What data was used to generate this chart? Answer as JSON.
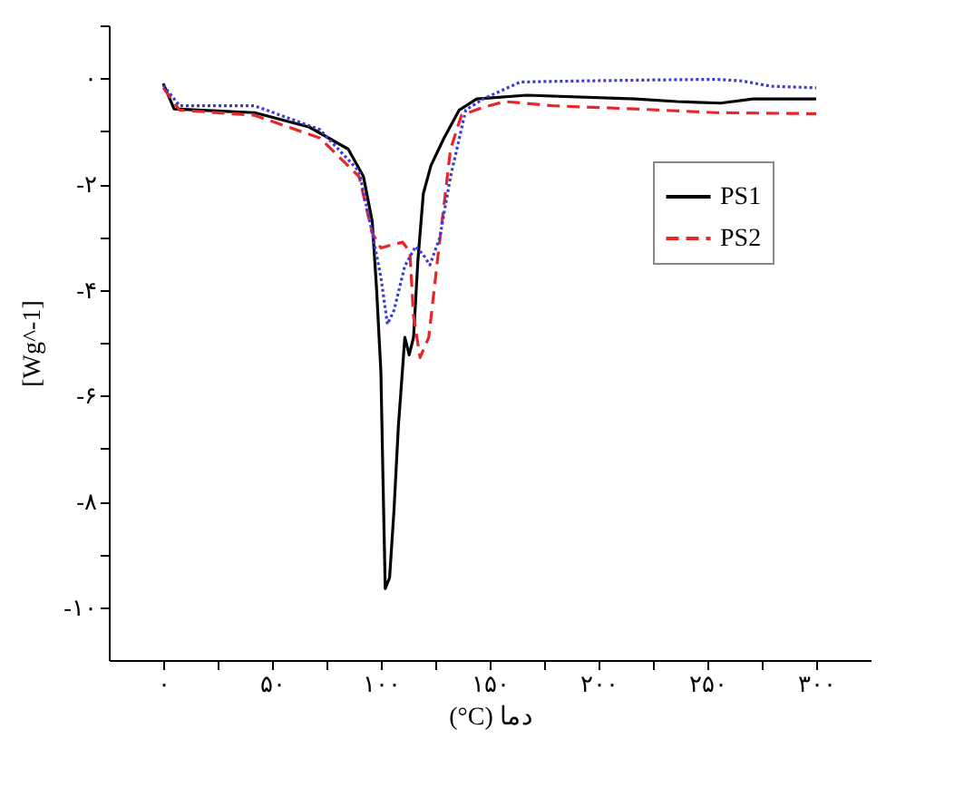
{
  "chart_data": {
    "type": "line",
    "xlabel": "(°C) دما",
    "ylabel": "[Wg^-1]",
    "xlim": [
      -25,
      325
    ],
    "ylim": [
      -11,
      1
    ],
    "xticks": [
      {
        "value": 0,
        "label": "۰"
      },
      {
        "value": 25,
        "label": null
      },
      {
        "value": 50,
        "label": "۵۰"
      },
      {
        "value": 75,
        "label": null
      },
      {
        "value": 100,
        "label": "۱۰۰"
      },
      {
        "value": 125,
        "label": null
      },
      {
        "value": 150,
        "label": "۱۵۰"
      },
      {
        "value": 175,
        "label": null
      },
      {
        "value": 200,
        "label": "۲۰۰"
      },
      {
        "value": 225,
        "label": null
      },
      {
        "value": 250,
        "label": "۲۵۰"
      },
      {
        "value": 275,
        "label": null
      },
      {
        "value": 300,
        "label": "۳۰۰"
      }
    ],
    "yticks": [
      {
        "value": -10,
        "label": "-۱۰"
      },
      {
        "value": -9,
        "label": null
      },
      {
        "value": -8,
        "label": "-۸"
      },
      {
        "value": -7,
        "label": null
      },
      {
        "value": -6,
        "label": "-۶"
      },
      {
        "value": -5,
        "label": null
      },
      {
        "value": -4,
        "label": "-۴"
      },
      {
        "value": -3,
        "label": null
      },
      {
        "value": -2,
        "label": "-۲"
      },
      {
        "value": -1,
        "label": null
      },
      {
        "value": 0,
        "label": "۰"
      },
      {
        "value": 1,
        "label": null
      }
    ],
    "grid": false,
    "legend": "top right",
    "marker": "none",
    "series": [
      {
        "name": "PS1",
        "color": "#000000",
        "line_style": "solid",
        "x": [
          0,
          5,
          42,
          67,
          85,
          92,
          96,
          98,
          100,
          101,
          102,
          104,
          106,
          108,
          111,
          113,
          115,
          117,
          119.5,
          123,
          129,
          136,
          144,
          167,
          217,
          236,
          256,
          271,
          300
        ],
        "values": [
          -0.1,
          -0.58,
          -0.65,
          -0.92,
          -1.34,
          -1.86,
          -2.7,
          -3.97,
          -5.55,
          -7.65,
          -9.65,
          -9.44,
          -8.18,
          -6.6,
          -4.9,
          -5.23,
          -4.9,
          -3.44,
          -2.18,
          -1.65,
          -1.13,
          -0.6,
          -0.39,
          -0.32,
          -0.39,
          -0.44,
          -0.47,
          -0.39,
          -0.39
        ]
      },
      {
        "name": "PS2",
        "color": "#e8262a",
        "line_style": "dashed",
        "x": [
          0,
          7.5,
          42,
          72,
          90,
          96,
          100,
          105,
          110,
          113.3,
          115,
          118,
          122,
          126,
          132,
          137,
          147,
          157,
          179,
          217,
          254,
          300
        ],
        "values": [
          -0.18,
          -0.6,
          -0.7,
          -1.13,
          -1.86,
          -2.92,
          -3.21,
          -3.15,
          -3.1,
          -3.28,
          -4.5,
          -5.28,
          -4.9,
          -3.44,
          -1.34,
          -0.7,
          -0.55,
          -0.44,
          -0.52,
          -0.58,
          -0.65,
          -0.67
        ]
      },
      {
        "color": "#3a3adc",
        "line_style": "dotted",
        "x": [
          0,
          7.5,
          42,
          72,
          90,
          96,
          100,
          103,
          106,
          111,
          116,
          119.5,
          122.5,
          127,
          132,
          139,
          147,
          164,
          192,
          229,
          254,
          266,
          279,
          300
        ],
        "values": [
          -0.13,
          -0.52,
          -0.52,
          -0.97,
          -1.76,
          -2.92,
          -3.76,
          -4.65,
          -4.39,
          -3.55,
          -3.18,
          -3.34,
          -3.53,
          -3.02,
          -1.86,
          -0.6,
          -0.39,
          -0.07,
          -0.05,
          -0.03,
          -0.02,
          -0.05,
          -0.15,
          -0.18
        ]
      }
    ]
  }
}
